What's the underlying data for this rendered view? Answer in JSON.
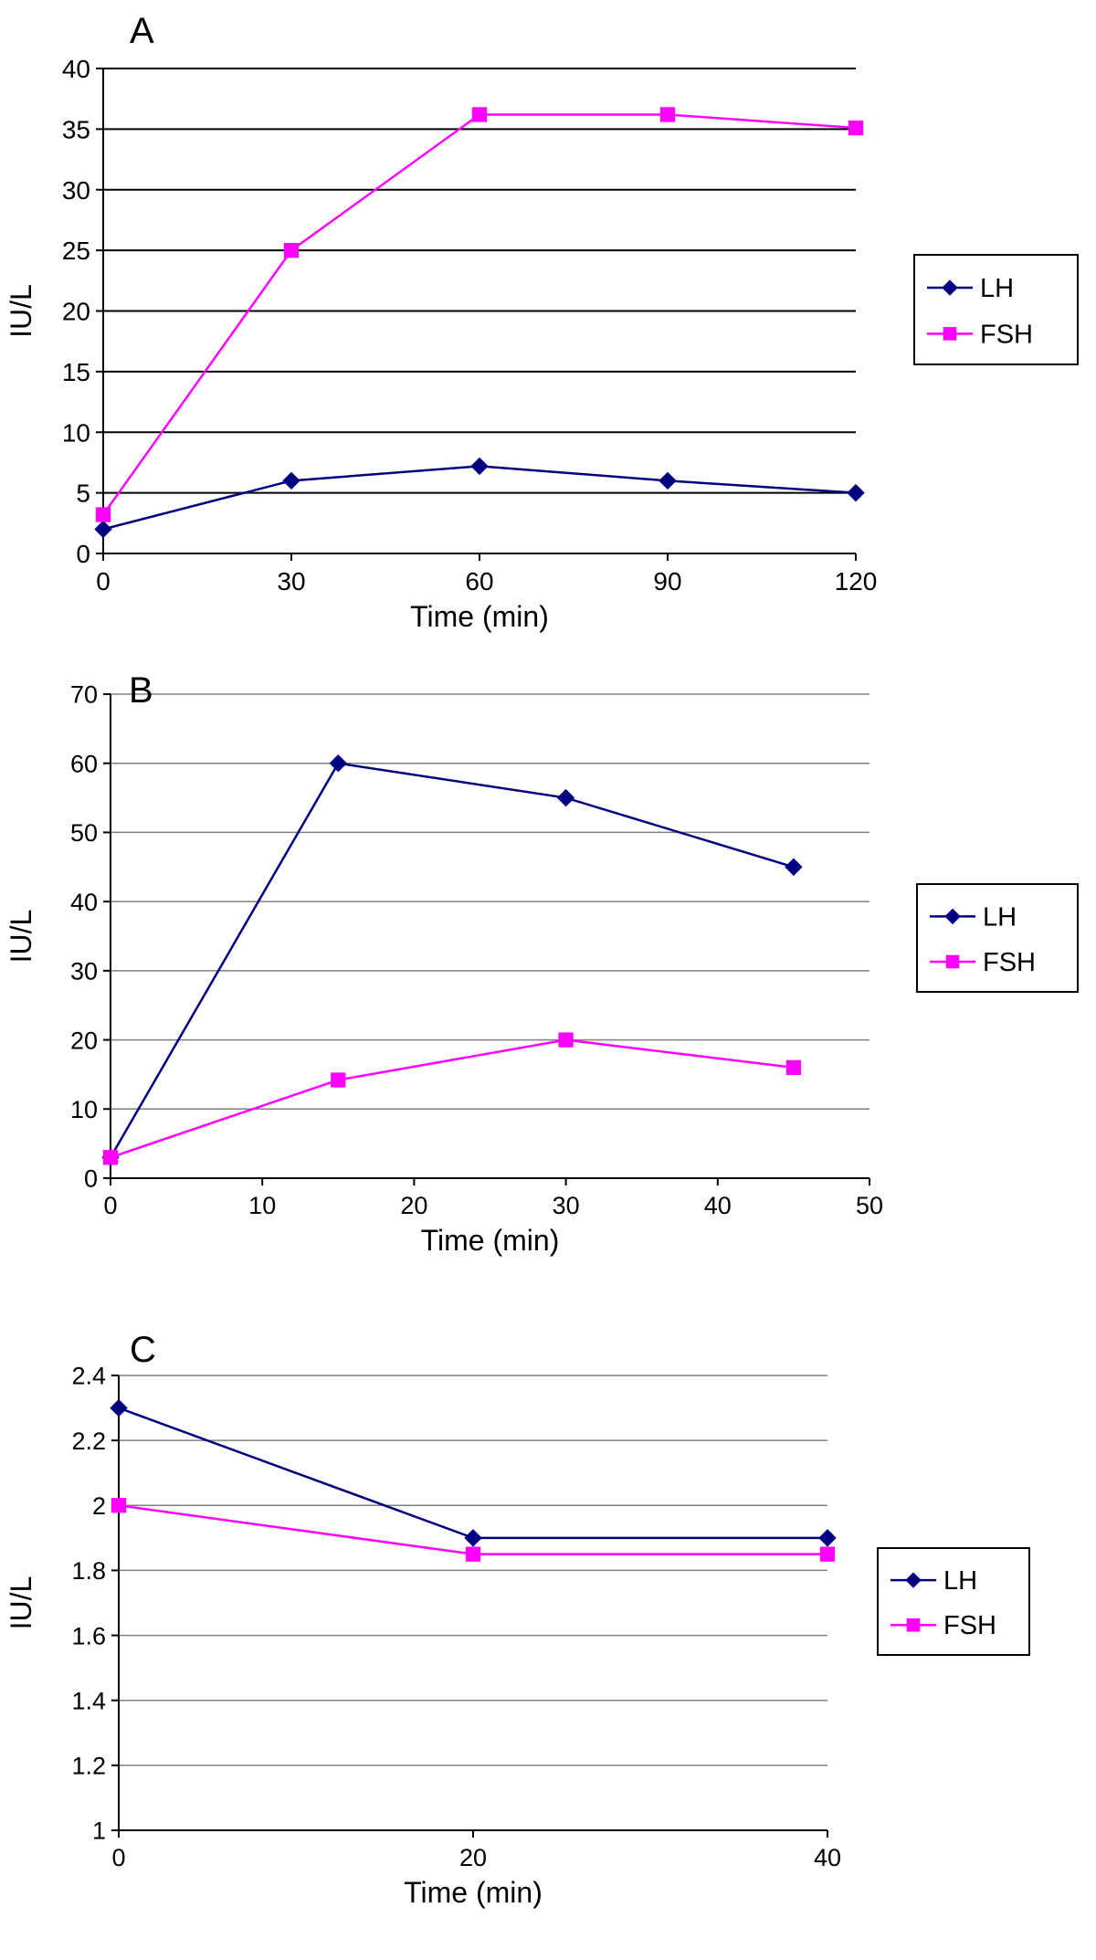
{
  "colors": {
    "lh": "#000080",
    "fsh": "#FF00FF",
    "grid_a": "#000000",
    "grid_bc": "#808080",
    "axis": "#000000"
  },
  "icons": {
    "lh_marker": "diamond-marker-icon",
    "fsh_marker": "square-marker-icon"
  },
  "chart_data": [
    {
      "panel_label": "A",
      "type": "line",
      "xlabel": "Time (min)",
      "ylabel": "IU/L",
      "x": [
        0,
        30,
        60,
        90,
        120
      ],
      "xticks": [
        0,
        30,
        60,
        90,
        120
      ],
      "xlim": [
        0,
        120
      ],
      "ylim": [
        0,
        40
      ],
      "yticks": [
        0,
        5,
        10,
        15,
        20,
        25,
        30,
        35,
        40
      ],
      "grid": true,
      "legend": "right",
      "series": [
        {
          "name": "LH",
          "marker": "diamond",
          "values": [
            2,
            6,
            7.2,
            6,
            5
          ]
        },
        {
          "name": "FSH",
          "marker": "square",
          "values": [
            3.2,
            25,
            36.2,
            36.2,
            35.1
          ]
        }
      ]
    },
    {
      "panel_label": "B",
      "type": "line",
      "xlabel": "Time (min)",
      "ylabel": "IU/L",
      "x": [
        0,
        15,
        30,
        45
      ],
      "xticks": [
        0,
        10,
        20,
        30,
        40,
        50
      ],
      "xlim": [
        0,
        50
      ],
      "ylim": [
        0,
        70
      ],
      "yticks": [
        0,
        10,
        20,
        30,
        40,
        50,
        60,
        70
      ],
      "grid": true,
      "legend": "right",
      "series": [
        {
          "name": "LH",
          "marker": "diamond",
          "values": [
            3,
            60,
            55,
            45
          ]
        },
        {
          "name": "FSH",
          "marker": "square",
          "values": [
            3,
            14.2,
            20,
            16
          ]
        }
      ]
    },
    {
      "panel_label": "C",
      "type": "line",
      "xlabel": "Time (min)",
      "ylabel": "IU/L",
      "x": [
        0,
        20,
        40
      ],
      "xticks": [
        0,
        20,
        40
      ],
      "xlim": [
        0,
        40
      ],
      "ylim": [
        1,
        2.4
      ],
      "yticks": [
        1,
        1.2,
        1.4,
        1.6,
        1.8,
        2,
        2.2,
        2.4
      ],
      "grid": true,
      "legend": "right",
      "series": [
        {
          "name": "LH",
          "marker": "diamond",
          "values": [
            2.3,
            1.9,
            1.9
          ]
        },
        {
          "name": "FSH",
          "marker": "square",
          "values": [
            2,
            1.85,
            1.85
          ]
        }
      ]
    }
  ]
}
